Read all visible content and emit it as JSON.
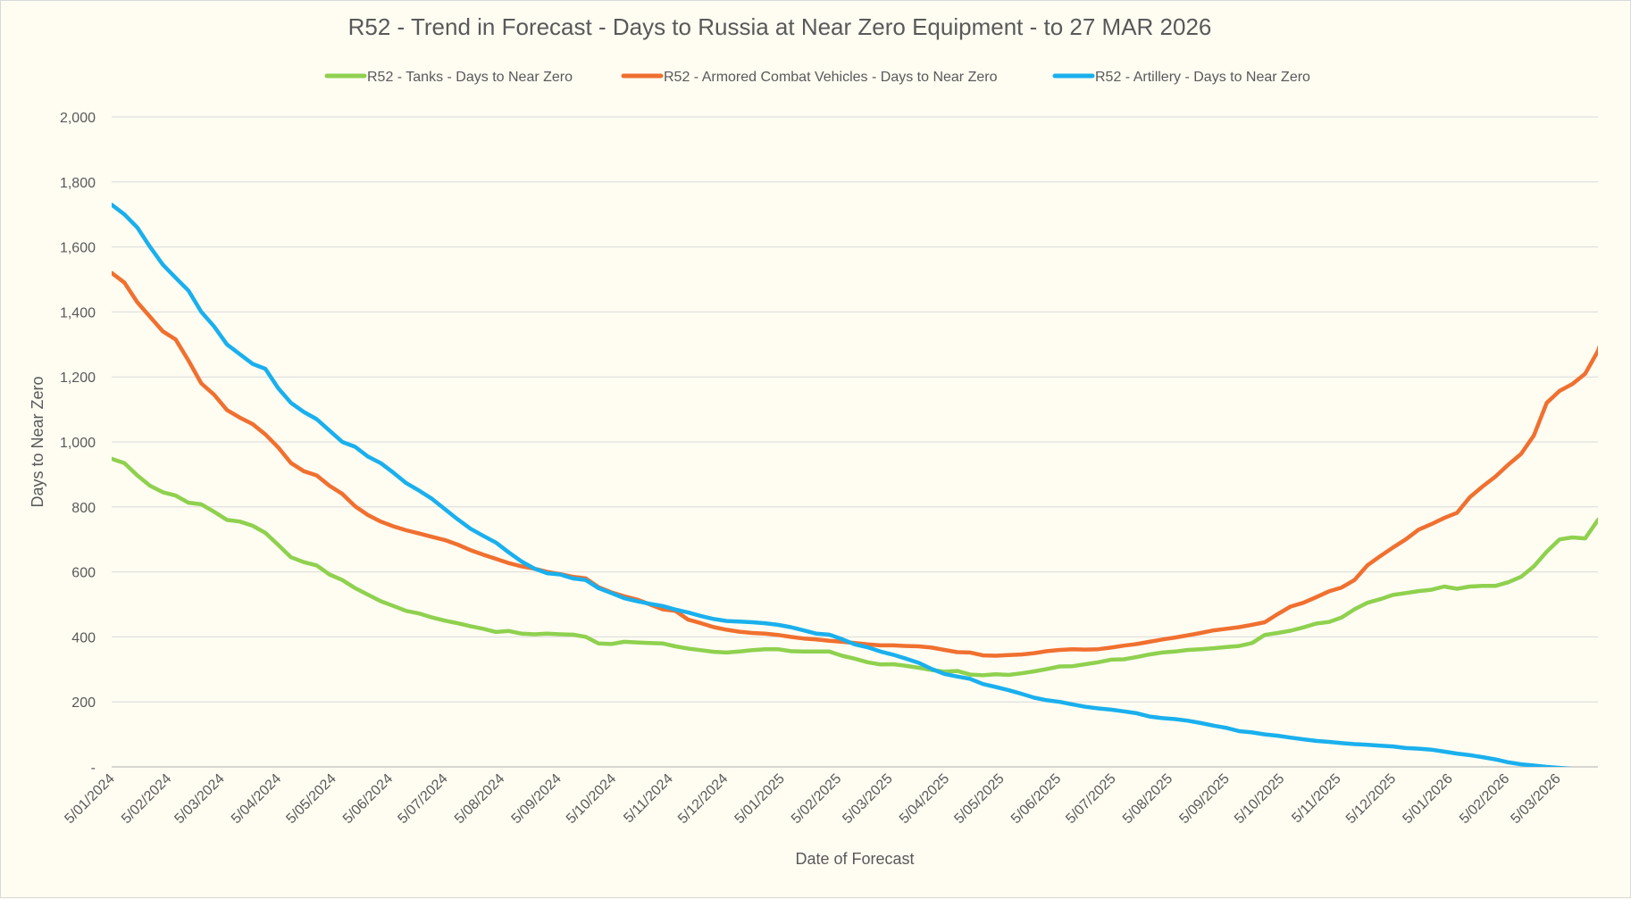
{
  "chart_data": {
    "type": "line",
    "title": "R52 - Trend in Forecast - Days to Russia at Near Zero Equipment - to 27 MAR 2026",
    "xlabel": "Date of Forecast",
    "ylabel": "Days to Near Zero",
    "ylim": [
      0,
      2000
    ],
    "y_ticks": [
      0,
      200,
      400,
      600,
      800,
      1000,
      1200,
      1400,
      1600,
      1800,
      2000
    ],
    "y_tick_labels": [
      "-",
      "200",
      "400",
      "600",
      "800",
      "1,000",
      "1,200",
      "1,400",
      "1,600",
      "1,800",
      "2,000"
    ],
    "x_tick_labels": [
      "5/01/2024",
      "5/02/2024",
      "5/03/2024",
      "5/04/2024",
      "5/05/2024",
      "5/06/2024",
      "5/07/2024",
      "5/08/2024",
      "5/09/2024",
      "5/10/2024",
      "5/11/2024",
      "5/12/2024",
      "5/01/2025",
      "5/02/2025",
      "5/03/2025",
      "5/04/2025",
      "5/05/2025",
      "5/06/2025",
      "5/07/2025",
      "5/08/2025",
      "5/09/2025",
      "5/10/2025",
      "5/11/2025",
      "5/12/2025",
      "5/01/2026",
      "5/02/2026",
      "5/03/2026"
    ],
    "x_ticks": [
      0,
      4.43,
      8.57,
      13,
      17.29,
      21.71,
      26,
      30.43,
      34.86,
      39.14,
      43.57,
      47.86,
      52.29,
      56.71,
      60.71,
      65.14,
      69.43,
      73.86,
      78.14,
      82.57,
      87,
      91.29,
      95.71,
      100,
      104.43,
      108.86,
      112.86
    ],
    "x_max": 116,
    "legend_position": "top",
    "grid": true,
    "series": [
      {
        "name": "R52 - Tanks - Days to Near Zero",
        "color": "#8fd14f",
        "values": [
          948,
          935,
          897,
          865,
          845,
          835,
          813,
          808,
          785,
          760,
          755,
          742,
          720,
          683,
          645,
          630,
          620,
          592,
          575,
          550,
          530,
          510,
          495,
          480,
          472,
          460,
          450,
          442,
          433,
          425,
          415,
          418,
          410,
          408,
          410,
          408,
          407,
          400,
          380,
          378,
          385,
          383,
          381,
          380,
          371,
          364,
          359,
          354,
          352,
          355,
          359,
          362,
          362,
          356,
          355,
          355,
          355,
          342,
          333,
          322,
          315,
          316,
          311,
          305,
          298,
          293,
          295,
          284,
          282,
          285,
          283,
          288,
          294,
          301,
          309,
          310,
          316,
          322,
          330,
          331,
          338,
          346,
          352,
          355,
          360,
          362,
          365,
          369,
          372,
          381,
          406,
          412,
          419,
          429,
          441,
          446,
          460,
          485,
          505,
          516,
          529,
          535,
          541,
          545,
          555,
          548,
          555,
          557,
          557,
          568,
          585,
          617,
          662,
          700,
          706,
          703,
          760,
          798
        ]
      },
      {
        "name": "R52 - Armored Combat Vehicles - Days to Near Zero",
        "color": "#f07030",
        "values": [
          1520,
          1490,
          1430,
          1385,
          1340,
          1315,
          1250,
          1180,
          1145,
          1098,
          1075,
          1055,
          1023,
          983,
          935,
          910,
          897,
          865,
          840,
          802,
          775,
          755,
          740,
          728,
          718,
          708,
          698,
          684,
          667,
          653,
          640,
          627,
          617,
          610,
          600,
          593,
          585,
          580,
          553,
          537,
          525,
          515,
          500,
          485,
          480,
          453,
          442,
          430,
          422,
          416,
          412,
          410,
          406,
          400,
          395,
          392,
          388,
          385,
          381,
          377,
          374,
          374,
          372,
          371,
          367,
          360,
          353,
          352,
          343,
          342,
          344,
          346,
          350,
          356,
          360,
          362,
          361,
          362,
          367,
          373,
          378,
          385,
          392,
          398,
          405,
          412,
          420,
          425,
          430,
          437,
          445,
          470,
          493,
          505,
          522,
          540,
          552,
          575,
          620,
          648,
          675,
          700,
          730,
          747,
          766,
          782,
          830,
          863,
          893,
          930,
          963,
          1020,
          1120,
          1157,
          1178,
          1210,
          1280,
          1390
        ]
      },
      {
        "name": "R52 - Artillery - Days to Near Zero",
        "color": "#1ab0ed",
        "values": [
          1730,
          1700,
          1660,
          1600,
          1545,
          1505,
          1465,
          1400,
          1355,
          1300,
          1270,
          1240,
          1225,
          1165,
          1120,
          1092,
          1070,
          1035,
          1000,
          985,
          955,
          935,
          905,
          873,
          850,
          825,
          793,
          762,
          733,
          711,
          690,
          660,
          632,
          610,
          596,
          592,
          580,
          575,
          550,
          535,
          519,
          510,
          502,
          495,
          484,
          475,
          464,
          455,
          449,
          447,
          445,
          442,
          437,
          430,
          420,
          410,
          407,
          393,
          377,
          368,
          355,
          345,
          333,
          320,
          301,
          286,
          278,
          271,
          255,
          246,
          236,
          225,
          213,
          205,
          200,
          192,
          185,
          180,
          176,
          171,
          165,
          155,
          150,
          147,
          142,
          135,
          127,
          120,
          110,
          106,
          100,
          96,
          90,
          85,
          80,
          77,
          73,
          70,
          68,
          65,
          63,
          58,
          56,
          53,
          47,
          41,
          36,
          30,
          23,
          14,
          8,
          4,
          0,
          -3,
          -6,
          -10,
          -14,
          -18
        ]
      }
    ]
  }
}
